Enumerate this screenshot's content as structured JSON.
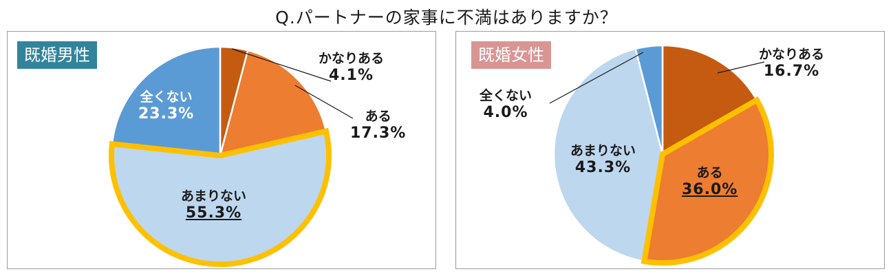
{
  "title": "Q.パートナーの家事に不満はありますか？",
  "colors": {
    "kanari_aru": "#c55a11",
    "aru": "#ed7d31",
    "amari_nai": "#bdd7ee",
    "mattaku_nai": "#5b9bd5",
    "highlight_ring": "#ffc000",
    "tag_male": "#31849b",
    "tag_female": "#d89594"
  },
  "chart_data": [
    {
      "type": "pie",
      "title": "既婚男性",
      "slices": [
        {
          "label": "かなりある",
          "value": 4.1,
          "value_text": "4.1%"
        },
        {
          "label": "ある",
          "value": 17.3,
          "value_text": "17.3%"
        },
        {
          "label": "あまりない",
          "value": 55.3,
          "value_text": "55.3%"
        },
        {
          "label": "全くない",
          "value": 23.3,
          "value_text": "23.3%"
        }
      ],
      "highlighted_slices": [
        "あまりない"
      ],
      "underlined_value": "55.3%"
    },
    {
      "type": "pie",
      "title": "既婚女性",
      "slices": [
        {
          "label": "かなりある",
          "value": 16.7,
          "value_text": "16.7%"
        },
        {
          "label": "ある",
          "value": 36.0,
          "value_text": "36.0%"
        },
        {
          "label": "あまりない",
          "value": 43.3,
          "value_text": "43.3%"
        },
        {
          "label": "全くない",
          "value": 4.0,
          "value_text": "4.0%"
        }
      ],
      "highlighted_slices": [
        "ある"
      ],
      "underlined_value": "36.0%"
    }
  ]
}
